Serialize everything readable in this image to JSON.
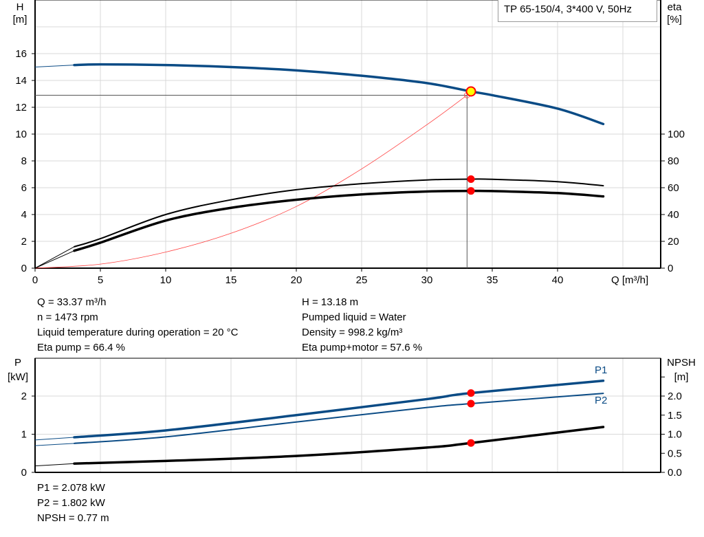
{
  "colors": {
    "head": "#0a4b85",
    "efficiency": "#000000",
    "system": "#ff4040",
    "power": "#0a4b85",
    "npsh": "#000000",
    "duty_point": "#ff0000",
    "duty_point_head_fill": "#ffff00",
    "grid": "#d8d8d8"
  },
  "header": {
    "model": "TP 65-150/4, 3*400 V, 50Hz"
  },
  "chart_data": [
    {
      "type": "line",
      "xlabel": "Q [m³/h]",
      "ylabel_left": [
        "H",
        "[m]"
      ],
      "ylabel_right": [
        "eta",
        "[%]"
      ],
      "xlim": [
        0,
        48
      ],
      "ylim_left": [
        0,
        20
      ],
      "ylim_right": [
        0,
        200
      ],
      "x_ticks": [
        "0",
        "5",
        "10",
        "15",
        "20",
        "25",
        "30",
        "35",
        "40"
      ],
      "y_ticks_left": [
        "0",
        "2",
        "4",
        "6",
        "8",
        "10",
        "12",
        "14",
        "16"
      ],
      "y_ticks_right": [
        "0",
        "20",
        "40",
        "60",
        "80",
        "100"
      ],
      "grid": true,
      "series": [
        {
          "key": "H",
          "axis": "left",
          "x": [
            0,
            3,
            5,
            10,
            15,
            20,
            25,
            30,
            33.37,
            35,
            40,
            43.5
          ],
          "y": [
            15.0,
            15.15,
            15.2,
            15.15,
            15.0,
            14.75,
            14.35,
            13.8,
            13.18,
            12.9,
            11.9,
            10.75
          ]
        },
        {
          "key": "eta_pump",
          "axis": "right",
          "x": [
            0,
            3,
            5,
            10,
            15,
            20,
            25,
            30,
            33.37,
            35,
            40,
            43.5
          ],
          "y": [
            0,
            16,
            22,
            40,
            51,
            58.5,
            63,
            65.8,
            66.4,
            66.3,
            64.5,
            61.5
          ]
        },
        {
          "key": "eta_pump_motor",
          "axis": "right",
          "x": [
            0,
            3,
            5,
            10,
            15,
            20,
            25,
            30,
            33.37,
            35,
            40,
            43.5
          ],
          "y": [
            0,
            13,
            19,
            35.5,
            45,
            51,
            55,
            57.2,
            57.6,
            57.5,
            56,
            53.5
          ]
        },
        {
          "key": "system",
          "axis": "left",
          "x": [
            0,
            5,
            10,
            15,
            20,
            25,
            30,
            33.07
          ],
          "y": [
            0,
            0.3,
            1.2,
            2.6,
            4.6,
            7.4,
            10.7,
            12.9
          ]
        }
      ],
      "duty_point": {
        "Q": 33.37,
        "H": 13.18,
        "eta_pump": 66.4,
        "eta_pump_motor": 57.6
      }
    },
    {
      "type": "line",
      "ylabel_left": [
        "P",
        "[kW]"
      ],
      "ylabel_right": [
        "NPSH",
        "[m]"
      ],
      "xlim": [
        0,
        48
      ],
      "ylim_left": [
        0,
        3
      ],
      "ylim_right": [
        0,
        3
      ],
      "y_ticks_left": [
        "0",
        "1",
        "2"
      ],
      "y_ticks_right": [
        "0.0",
        "0.5",
        "1.0",
        "1.5",
        "2.0"
      ],
      "grid": true,
      "series": [
        {
          "name": "P1",
          "axis": "left",
          "x": [
            0,
            3,
            10,
            20,
            30,
            33.37,
            43.5
          ],
          "y": [
            0.85,
            0.92,
            1.1,
            1.5,
            1.92,
            2.078,
            2.4
          ]
        },
        {
          "name": "P2",
          "axis": "left",
          "x": [
            0,
            3,
            10,
            20,
            30,
            33.37,
            43.5
          ],
          "y": [
            0.7,
            0.76,
            0.93,
            1.32,
            1.7,
            1.802,
            2.07
          ]
        },
        {
          "key": "NPSH",
          "axis": "right",
          "x": [
            0,
            3,
            10,
            20,
            30,
            33.37,
            43.5
          ],
          "y": [
            0.17,
            0.23,
            0.3,
            0.43,
            0.65,
            0.77,
            1.19
          ]
        }
      ],
      "duty_point": {
        "Q": 33.37,
        "P1": 2.078,
        "P2": 1.802,
        "NPSH": 0.77
      }
    }
  ],
  "info_left": [
    "Q = 33.37 m³/h",
    "n = 1473 rpm",
    "Liquid temperature during operation = 20 °C",
    "Eta pump = 66.4 %"
  ],
  "info_right": [
    "H = 13.18 m",
    "Pumped liquid = Water",
    "Density = 998.2 kg/m³",
    "Eta pump+motor = 57.6 %"
  ],
  "info_bottom": [
    "P1 = 2.078 kW",
    "P2 = 1.802 kW",
    "NPSH = 0.77 m"
  ]
}
